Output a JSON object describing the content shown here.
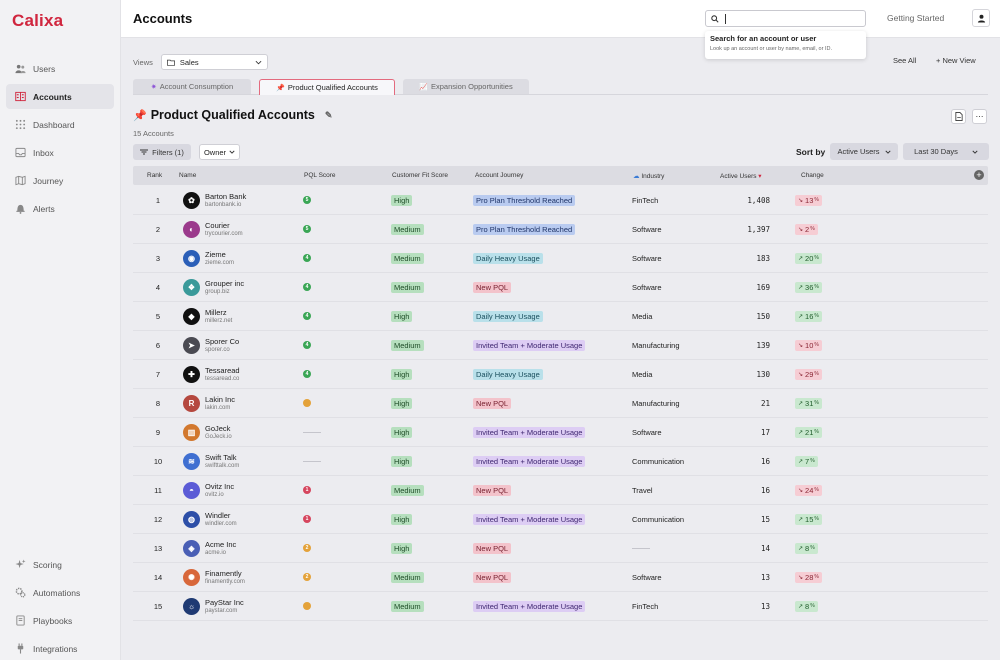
{
  "app": {
    "name": "Calixa",
    "brand_color": "#d0263e"
  },
  "sidebar": {
    "items": [
      {
        "label": "Users",
        "icon": "users-icon"
      },
      {
        "label": "Accounts",
        "icon": "building-icon"
      },
      {
        "label": "Dashboard",
        "icon": "grid-icon"
      },
      {
        "label": "Inbox",
        "icon": "inbox-icon"
      },
      {
        "label": "Journey",
        "icon": "map-icon"
      },
      {
        "label": "Alerts",
        "icon": "bell-icon"
      }
    ],
    "bottom_items": [
      {
        "label": "Scoring",
        "icon": "sparkle-icon"
      },
      {
        "label": "Automations",
        "icon": "cog-icon"
      },
      {
        "label": "Playbooks",
        "icon": "book-icon"
      },
      {
        "label": "Integrations",
        "icon": "plug-icon"
      }
    ]
  },
  "header": {
    "title": "Accounts",
    "search_value": "",
    "getting_started": "Getting Started"
  },
  "search_dropdown": {
    "title": "Search for an account or user",
    "subtitle": "Look up an account or user by name, email, or ID."
  },
  "views": {
    "label": "Views",
    "selected": "Sales",
    "see_all": "See All",
    "new_view": "+ New View"
  },
  "tabs": [
    {
      "label": "Account Consumption",
      "icon": "✷"
    },
    {
      "label": "Product Qualified Accounts",
      "icon": "📌"
    },
    {
      "label": "Expansion Opportunities",
      "icon": "📈"
    }
  ],
  "content": {
    "title": "Product Qualified Accounts",
    "count": "15 Accounts",
    "filters": "Filters (1)",
    "owner": "Owner",
    "sort_by": "Sort by",
    "sort_field": "Active Users",
    "sort_range": "Last 30 Days"
  },
  "table": {
    "headers": [
      "Rank",
      "Name",
      "PQL Score",
      "Customer Fit Score",
      "Account Journey",
      "Industry",
      "Active Users",
      "Change"
    ],
    "rows": [
      {
        "rank": "1",
        "name": "Barton Bank",
        "domain": "bartonbank.io",
        "logo_bg": "#111111",
        "logo_char": "✿",
        "pql": "5",
        "pql_color": "#3aa655",
        "fit": "High",
        "fit_color": "green",
        "journey": "Pro Plan Threshold Reached",
        "journey_color": "blue",
        "industry": "FinTech",
        "active_users": "1,408",
        "change": "13",
        "dir": "down"
      },
      {
        "rank": "2",
        "name": "Courier",
        "domain": "trycourier.com",
        "logo_bg": "#9b3a8c",
        "logo_char": "◐",
        "pql": "5",
        "pql_color": "#3aa655",
        "fit": "Medium",
        "fit_color": "green",
        "journey": "Pro Plan Threshold Reached",
        "journey_color": "blue",
        "industry": "Software",
        "active_users": "1,397",
        "change": "2",
        "dir": "down"
      },
      {
        "rank": "3",
        "name": "Zieme",
        "domain": "zieme.com",
        "logo_bg": "#2b5fb8",
        "logo_char": "◉",
        "pql": "4",
        "pql_color": "#3aa655",
        "fit": "Medium",
        "fit_color": "green",
        "journey": "Daily Heavy Usage",
        "journey_color": "teal",
        "industry": "Software",
        "active_users": "183",
        "change": "20",
        "dir": "up"
      },
      {
        "rank": "4",
        "name": "Grouper inc",
        "domain": "group.biz",
        "logo_bg": "#3a9a9a",
        "logo_char": "❖",
        "pql": "4",
        "pql_color": "#3aa655",
        "fit": "Medium",
        "fit_color": "green",
        "journey": "New PQL",
        "journey_color": "red",
        "industry": "Software",
        "active_users": "169",
        "change": "36",
        "dir": "up"
      },
      {
        "rank": "5",
        "name": "Millerz",
        "domain": "millerz.net",
        "logo_bg": "#111111",
        "logo_char": "◆",
        "pql": "4",
        "pql_color": "#3aa655",
        "fit": "High",
        "fit_color": "green",
        "journey": "Daily Heavy Usage",
        "journey_color": "teal",
        "industry": "Media",
        "active_users": "150",
        "change": "16",
        "dir": "up"
      },
      {
        "rank": "6",
        "name": "Sporer Co",
        "domain": "sporer.co",
        "logo_bg": "#4a4a52",
        "logo_char": "➤",
        "pql": "4",
        "pql_color": "#3aa655",
        "fit": "Medium",
        "fit_color": "green",
        "journey": "Invited Team + Moderate Usage",
        "journey_color": "purple",
        "industry": "Manufacturing",
        "active_users": "139",
        "change": "10",
        "dir": "down"
      },
      {
        "rank": "7",
        "name": "Tessaread",
        "domain": "tessaread.co",
        "logo_bg": "#111111",
        "logo_char": "✚",
        "pql": "4",
        "pql_color": "#3aa655",
        "fit": "High",
        "fit_color": "green",
        "journey": "Daily Heavy Usage",
        "journey_color": "teal",
        "industry": "Media",
        "active_users": "130",
        "change": "29",
        "dir": "down"
      },
      {
        "rank": "8",
        "name": "Lakin Inc",
        "domain": "lakin.com",
        "logo_bg": "#b5483f",
        "logo_char": "R",
        "pql": "",
        "pql_color": "#e4a23a",
        "fit": "High",
        "fit_color": "green",
        "journey": "New PQL",
        "journey_color": "red",
        "industry": "Manufacturing",
        "active_users": "21",
        "change": "31",
        "dir": "up"
      },
      {
        "rank": "9",
        "name": "GoJeck",
        "domain": "GoJeck.io",
        "logo_bg": "#d2782e",
        "logo_char": "▥",
        "pql": "",
        "pql_color": "",
        "fit": "High",
        "fit_color": "green",
        "journey": "Invited Team + Moderate Usage",
        "journey_color": "purple",
        "industry": "Software",
        "active_users": "17",
        "change": "21",
        "dir": "up"
      },
      {
        "rank": "10",
        "name": "Swift Talk",
        "domain": "swifttalk.com",
        "logo_bg": "#3f6fd1",
        "logo_char": "≋",
        "pql": "",
        "pql_color": "",
        "fit": "High",
        "fit_color": "green",
        "journey": "Invited Team + Moderate Usage",
        "journey_color": "purple",
        "industry": "Communication",
        "active_users": "16",
        "change": "7",
        "dir": "up"
      },
      {
        "rank": "11",
        "name": "Ovitz Inc",
        "domain": "ovitz.io",
        "logo_bg": "#5b5bd6",
        "logo_char": "◓",
        "pql": "1",
        "pql_color": "#d6465e",
        "fit": "Medium",
        "fit_color": "green",
        "journey": "New PQL",
        "journey_color": "red",
        "industry": "Travel",
        "active_users": "16",
        "change": "24",
        "dir": "down"
      },
      {
        "rank": "12",
        "name": "Windler",
        "domain": "windler.com",
        "logo_bg": "#2d4fa8",
        "logo_char": "◍",
        "pql": "1",
        "pql_color": "#d6465e",
        "fit": "High",
        "fit_color": "green",
        "journey": "Invited Team + Moderate Usage",
        "journey_color": "purple",
        "industry": "Communication",
        "active_users": "15",
        "change": "15",
        "dir": "up"
      },
      {
        "rank": "13",
        "name": "Acme Inc",
        "domain": "acme.io",
        "logo_bg": "#4a5fb5",
        "logo_char": "◈",
        "pql": "2",
        "pql_color": "#e4a23a",
        "fit": "High",
        "fit_color": "green",
        "journey": "New PQL",
        "journey_color": "red",
        "industry": "",
        "active_users": "14",
        "change": "8",
        "dir": "up"
      },
      {
        "rank": "14",
        "name": "Finamently",
        "domain": "finamently.com",
        "logo_bg": "#d8673a",
        "logo_char": "✺",
        "pql": "2",
        "pql_color": "#e4a23a",
        "fit": "Medium",
        "fit_color": "green",
        "journey": "New PQL",
        "journey_color": "red",
        "industry": "Software",
        "active_users": "13",
        "change": "28",
        "dir": "down"
      },
      {
        "rank": "15",
        "name": "PayStar Inc",
        "domain": "paystar.com",
        "logo_bg": "#1f3a73",
        "logo_char": "☼",
        "pql": "",
        "pql_color": "#e4a23a",
        "fit": "Medium",
        "fit_color": "green",
        "journey": "Invited Team + Moderate Usage",
        "journey_color": "purple",
        "industry": "FinTech",
        "active_users": "13",
        "change": "8",
        "dir": "up"
      }
    ]
  }
}
